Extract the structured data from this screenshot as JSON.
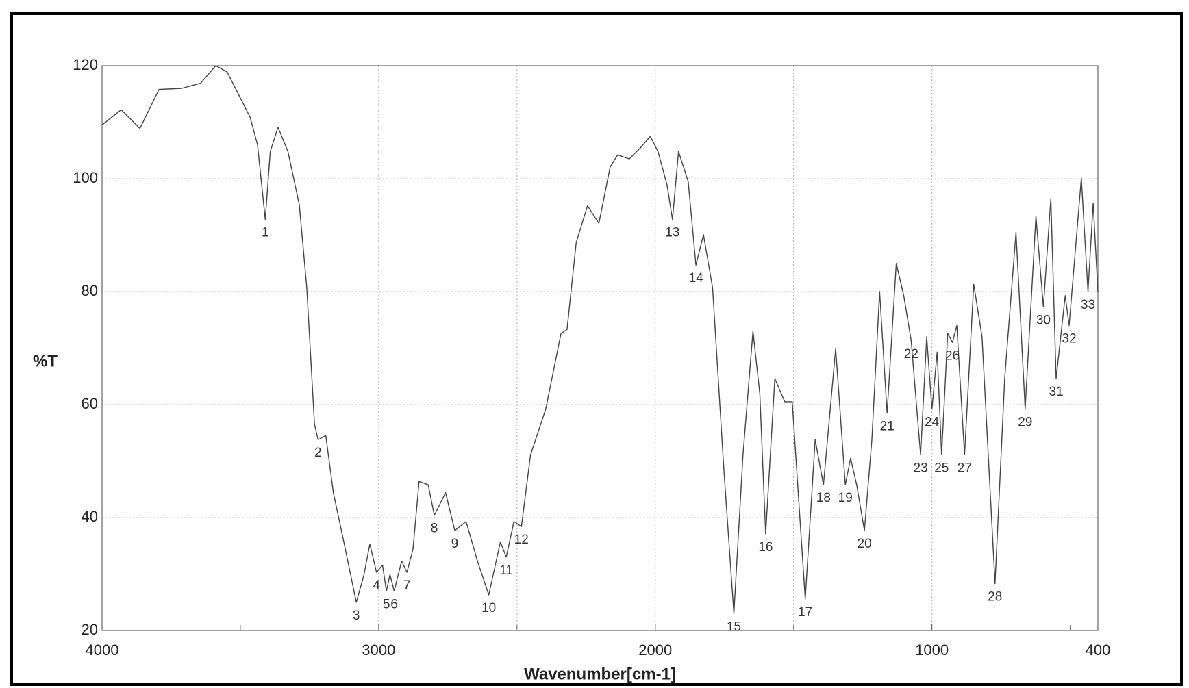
{
  "chart_data": {
    "type": "line",
    "xlabel": "Wavenumber[cm-1]",
    "ylabel": "%T",
    "xlim": [
      4000,
      400
    ],
    "ylim": [
      20,
      120
    ],
    "xticks": [
      4000,
      3000,
      2000,
      1000,
      400
    ],
    "xgrid": [
      3000,
      2500,
      2000,
      1500,
      1000
    ],
    "xminorticks": [
      3500,
      2500,
      1500,
      500
    ],
    "yticks": [
      20,
      40,
      60,
      80,
      100,
      120
    ],
    "grid": true,
    "color": "#444444",
    "x": [
      4000,
      3931,
      3863,
      3794,
      3712,
      3644,
      3589,
      3548,
      3465,
      3438,
      3410,
      3392,
      3364,
      3328,
      3287,
      3260,
      3232,
      3219,
      3191,
      3164,
      3123,
      3081,
      3054,
      3032,
      3008,
      2986,
      2972,
      2959,
      2944,
      2917,
      2898,
      2876,
      2854,
      2821,
      2799,
      2758,
      2725,
      2684,
      2643,
      2602,
      2560,
      2539,
      2511,
      2484,
      2451,
      2396,
      2341,
      2319,
      2286,
      2245,
      2204,
      2163,
      2136,
      2094,
      2053,
      2018,
      1990,
      1957,
      1938,
      1916,
      1881,
      1853,
      1826,
      1793,
      1752,
      1716,
      1683,
      1647,
      1622,
      1601,
      1568,
      1532,
      1505,
      1458,
      1422,
      1392,
      1348,
      1313,
      1294,
      1272,
      1244,
      1217,
      1189,
      1162,
      1129,
      1102,
      1075,
      1041,
      1019,
      1000,
      981,
      965,
      943,
      926,
      910,
      882,
      849,
      819,
      772,
      737,
      696,
      663,
      624,
      597,
      570,
      551,
      518,
      504,
      460,
      436,
      417,
      400
    ],
    "values": [
      109.5,
      112.2,
      108.9,
      115.8,
      116,
      116.9,
      120,
      118.9,
      110.9,
      106,
      92.8,
      104.8,
      109.1,
      104.8,
      95.4,
      80.7,
      56.5,
      53.8,
      54.5,
      44.4,
      35,
      25,
      29.7,
      35.3,
      30.3,
      31.6,
      27,
      29.9,
      27,
      32.3,
      30.3,
      34.4,
      46.4,
      45.8,
      40.4,
      44.4,
      37.7,
      39.3,
      32.3,
      26.3,
      35.7,
      33,
      39.3,
      38.4,
      51.1,
      59.2,
      72.6,
      73.3,
      88.7,
      95.2,
      92.1,
      102.1,
      104.2,
      103.5,
      105.5,
      107.5,
      104.8,
      98.8,
      92.8,
      104.8,
      99.5,
      84.7,
      90.1,
      80.7,
      48.5,
      23,
      51.1,
      73,
      61.9,
      37.1,
      64.6,
      60.5,
      60.5,
      25.6,
      53.8,
      45.8,
      69.9,
      45.8,
      50.5,
      45.8,
      37.7,
      53.8,
      80,
      58.5,
      85,
      79.3,
      71.3,
      51.1,
      72,
      59.2,
      69.3,
      51.1,
      72.6,
      71,
      74,
      51.1,
      81.3,
      72,
      28.3,
      64.6,
      90.5,
      59.2,
      93.4,
      77.3,
      96.5,
      64.6,
      79.3,
      74,
      100.1,
      80,
      95.7,
      80
    ],
    "annotations": [
      {
        "label": "1",
        "x": 3410,
        "y": 92.8
      },
      {
        "label": "2",
        "x": 3219,
        "y": 53.8
      },
      {
        "label": "3",
        "x": 3081,
        "y": 25
      },
      {
        "label": "4",
        "x": 3008,
        "y": 30.3
      },
      {
        "label": "5",
        "x": 2972,
        "y": 27
      },
      {
        "label": "6",
        "x": 2944,
        "y": 27
      },
      {
        "label": "7",
        "x": 2898,
        "y": 30.3
      },
      {
        "label": "8",
        "x": 2799,
        "y": 40.4
      },
      {
        "label": "9",
        "x": 2725,
        "y": 37.7
      },
      {
        "label": "10",
        "x": 2602,
        "y": 26.3
      },
      {
        "label": "11",
        "x": 2539,
        "y": 33
      },
      {
        "label": "12",
        "x": 2484,
        "y": 38.4
      },
      {
        "label": "13",
        "x": 1938,
        "y": 92.8
      },
      {
        "label": "14",
        "x": 1853,
        "y": 84.7
      },
      {
        "label": "15",
        "x": 1716,
        "y": 23
      },
      {
        "label": "16",
        "x": 1601,
        "y": 37.1
      },
      {
        "label": "17",
        "x": 1458,
        "y": 25.6
      },
      {
        "label": "18",
        "x": 1392,
        "y": 45.8
      },
      {
        "label": "19",
        "x": 1313,
        "y": 45.8
      },
      {
        "label": "20",
        "x": 1244,
        "y": 37.7
      },
      {
        "label": "21",
        "x": 1162,
        "y": 58.5
      },
      {
        "label": "22",
        "x": 1075,
        "y": 71.3
      },
      {
        "label": "23",
        "x": 1041,
        "y": 51.1
      },
      {
        "label": "24",
        "x": 1000,
        "y": 59.2
      },
      {
        "label": "25",
        "x": 965,
        "y": 51.1
      },
      {
        "label": "26",
        "x": 926,
        "y": 71
      },
      {
        "label": "27",
        "x": 882,
        "y": 51.1
      },
      {
        "label": "28",
        "x": 772,
        "y": 28.3
      },
      {
        "label": "29",
        "x": 663,
        "y": 59.2
      },
      {
        "label": "30",
        "x": 597,
        "y": 77.3
      },
      {
        "label": "31",
        "x": 551,
        "y": 64.6
      },
      {
        "label": "32",
        "x": 504,
        "y": 74
      },
      {
        "label": "33",
        "x": 436,
        "y": 80
      }
    ]
  }
}
